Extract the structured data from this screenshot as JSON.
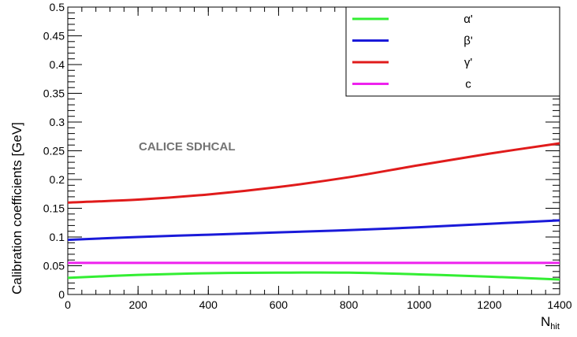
{
  "chart_data": {
    "type": "line",
    "xlabel_main": "N",
    "xlabel_sub": "hit",
    "ylabel": "Calibration coefficients [GeV]",
    "xlim": [
      0,
      1400
    ],
    "ylim": [
      0,
      0.5
    ],
    "x_ticks": [
      0,
      200,
      400,
      600,
      800,
      1000,
      1200,
      1400
    ],
    "x_tick_labels": [
      "0",
      "200",
      "400",
      "600",
      "800",
      "1000",
      "1200",
      "1400"
    ],
    "y_ticks": [
      0,
      0.05,
      0.1,
      0.15,
      0.2,
      0.25,
      0.3,
      0.35,
      0.4,
      0.45,
      0.5
    ],
    "y_tick_labels": [
      "0",
      "0.05",
      "0.1",
      "0.15",
      "0.2",
      "0.25",
      "0.3",
      "0.35",
      "0.4",
      "0.45",
      "0.5"
    ],
    "annotation": "CALICE SDHCAL",
    "legend_position": "top-right",
    "grid": false,
    "series": [
      {
        "name": "α'",
        "color": "#33ee33",
        "x": [
          0,
          200,
          400,
          600,
          800,
          1000,
          1200,
          1400
        ],
        "y": [
          0.029,
          0.034,
          0.037,
          0.038,
          0.038,
          0.035,
          0.031,
          0.026
        ]
      },
      {
        "name": "β'",
        "color": "#1a1ad9",
        "x": [
          0,
          200,
          400,
          600,
          800,
          1000,
          1200,
          1400
        ],
        "y": [
          0.095,
          0.1,
          0.104,
          0.108,
          0.112,
          0.117,
          0.123,
          0.129
        ]
      },
      {
        "name": "γ'",
        "color": "#e01b1b",
        "x": [
          0,
          200,
          400,
          600,
          800,
          1000,
          1200,
          1400
        ],
        "y": [
          0.16,
          0.165,
          0.174,
          0.187,
          0.204,
          0.225,
          0.245,
          0.263
        ]
      },
      {
        "name": "c",
        "color": "#ee22ee",
        "x": [
          0,
          200,
          400,
          600,
          800,
          1000,
          1200,
          1400
        ],
        "y": [
          0.055,
          0.055,
          0.055,
          0.055,
          0.055,
          0.055,
          0.055,
          0.055
        ]
      }
    ]
  }
}
